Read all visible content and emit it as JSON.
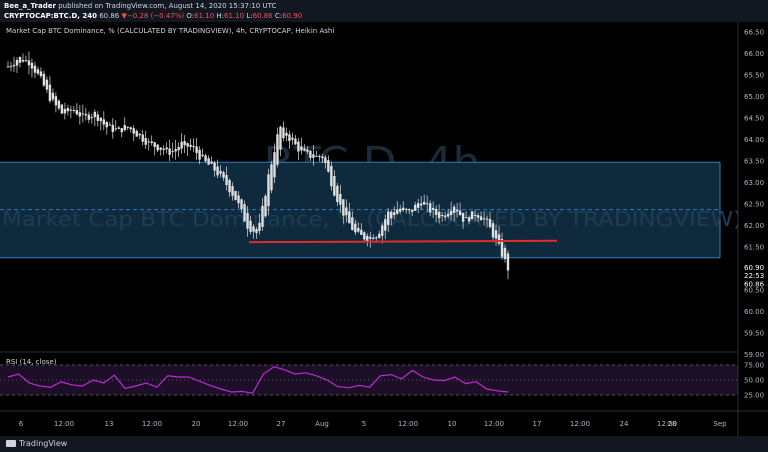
{
  "header": {
    "author": "Bee_a_Trader",
    "published_text": "published on TradingView.com, August 14, 2020 15:37:10 UTC",
    "symbol_line": "CRYPTOCAP:BTC.D, 240",
    "last": "60.86",
    "change_arrow": "▼",
    "change": "−0.28 (−0.47%)",
    "ohlc_o_label": "O:",
    "ohlc_o": "61.10",
    "ohlc_h_label": "H:",
    "ohlc_h": "61.10",
    "ohlc_l_label": "L:",
    "ohlc_l": "60.86",
    "ohlc_c_label": "C:",
    "ohlc_c": "60.90"
  },
  "legend": {
    "series_title": "Market Cap BTC Dominance, % (CALCULATED BY TRADINGVIEW), 4h, CRYPTOCAP, Heikin Ashi",
    "watermark_big": "BTC.D, 4h",
    "watermark_small": "Market Cap BTC Dominance, % (CALCULATED BY TRADINGVIEW)"
  },
  "rsi": {
    "title": "RSI (14, close)",
    "level_high": "75.00",
    "level_mid": "50.00",
    "level_low": "25.00"
  },
  "price_axis": {
    "ticks": [
      "66.50",
      "66.00",
      "65.50",
      "65.00",
      "64.50",
      "64.00",
      "63.50",
      "63.00",
      "62.50",
      "62.00",
      "61.50",
      "61.00",
      "60.50",
      "60.00",
      "59.50",
      "59.00"
    ],
    "last_price": "60.90",
    "countdown": "22:53",
    "low_label": "60.86"
  },
  "time_axis": {
    "ticks": [
      "6",
      "12:00",
      "13",
      "12:00",
      "20",
      "12:00",
      "27",
      "Aug",
      "5",
      "12:00",
      "10",
      "12:00",
      "17",
      "12:00",
      "24",
      "12:00",
      "28",
      "Sep"
    ]
  },
  "footer": {
    "brand": "TradingView"
  },
  "colors": {
    "background": "#000000",
    "candle": "#e0e0e0",
    "zone_fill": "#0f2a3d",
    "zone_border": "#2e7cbf",
    "support_line": "#e62a2a",
    "rsi_line": "#b92ad1",
    "rsi_band": "#1e0f29"
  },
  "chart_data": {
    "type": "candlestick",
    "title": "Market Cap BTC Dominance, % (CALCULATED BY TRADINGVIEW), 4h, CRYPTOCAP, Heikin Ashi",
    "ylim": [
      58.8,
      66.8
    ],
    "price_path": [
      [
        0,
        65.7
      ],
      [
        1,
        65.9
      ],
      [
        2,
        65.8
      ],
      [
        3,
        65.4
      ],
      [
        4,
        64.9
      ],
      [
        5,
        64.6
      ],
      [
        6,
        64.7
      ],
      [
        7,
        64.5
      ],
      [
        8,
        64.6
      ],
      [
        9,
        64.3
      ],
      [
        10,
        64.2
      ],
      [
        11,
        64.3
      ],
      [
        12,
        64.1
      ],
      [
        13,
        63.9
      ],
      [
        14,
        63.8
      ],
      [
        15,
        63.7
      ],
      [
        16,
        63.9
      ],
      [
        17,
        63.8
      ],
      [
        18,
        63.5
      ],
      [
        19,
        63.3
      ],
      [
        20,
        63.0
      ],
      [
        21,
        62.6
      ],
      [
        22,
        62.0
      ],
      [
        23,
        61.8
      ],
      [
        24,
        63.2
      ],
      [
        25,
        64.3
      ],
      [
        26,
        64.0
      ],
      [
        27,
        63.7
      ],
      [
        28,
        63.6
      ],
      [
        29,
        63.6
      ],
      [
        30,
        62.8
      ],
      [
        31,
        62.2
      ],
      [
        32,
        61.8
      ],
      [
        33,
        61.7
      ],
      [
        34,
        61.8
      ],
      [
        35,
        62.3
      ],
      [
        36,
        62.4
      ],
      [
        37,
        62.3
      ],
      [
        38,
        62.6
      ],
      [
        39,
        62.3
      ],
      [
        40,
        62.2
      ],
      [
        41,
        62.5
      ],
      [
        42,
        62.1
      ],
      [
        43,
        62.3
      ],
      [
        44,
        62.1
      ],
      [
        45,
        61.6
      ],
      [
        46,
        61.0
      ]
    ],
    "zone": {
      "top": 63.47,
      "bottom": 61.25,
      "mid": 62.37
    },
    "support_level": 61.63,
    "rsi": [
      55,
      60,
      45,
      40,
      38,
      47,
      42,
      40,
      50,
      45,
      58,
      36,
      40,
      45,
      38,
      57,
      55,
      55,
      48,
      41,
      35,
      30,
      31,
      28,
      60,
      72,
      67,
      60,
      62,
      57,
      50,
      39,
      37,
      41,
      38,
      57,
      59,
      52,
      66,
      55,
      50,
      49,
      55,
      44,
      47,
      35,
      32,
      30
    ],
    "rsi_levels": [
      75,
      50,
      25
    ]
  }
}
